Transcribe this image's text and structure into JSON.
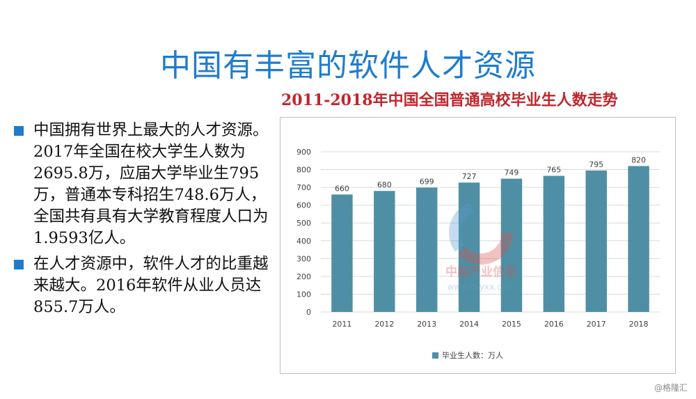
{
  "slide": {
    "title": "中国有丰富的软件人才资源",
    "bullets": [
      "中国拥有世界上最大的人才资源。2017年全国在校大学生人数为2695.8万，应届大学毕业生795万，普通本专科招生748.6万人，全国共有具有大学教育程度人口为1.9593亿人。",
      "在人才资源中，软件人才的比重越来越大。2016年软件从业人员达855.7万人。"
    ],
    "bullet_color": "#1f7ccd",
    "watermark": {
      "line1": "中国产业信息",
      "line2": "www.chyxx.com"
    },
    "source_tag": "@格隆汇"
  },
  "chart_data": {
    "type": "bar",
    "title": "2011-2018年中国全国普通高校毕业生人数走势",
    "categories": [
      "2011",
      "2012",
      "2013",
      "2014",
      "2015",
      "2016",
      "2017",
      "2018"
    ],
    "series": [
      {
        "name": "毕业生人数：万人",
        "values": [
          660,
          680,
          699,
          727,
          749,
          765,
          795,
          820
        ]
      }
    ],
    "ylim": [
      0,
      900
    ],
    "yticks": [
      0,
      100,
      200,
      300,
      400,
      500,
      600,
      700,
      800,
      900
    ],
    "data_labels": true,
    "legend_position": "bottom",
    "grid": true,
    "colors": {
      "bar": "#4f8fa5",
      "grid": "#d9d9d9",
      "title": "#c0262c"
    }
  }
}
